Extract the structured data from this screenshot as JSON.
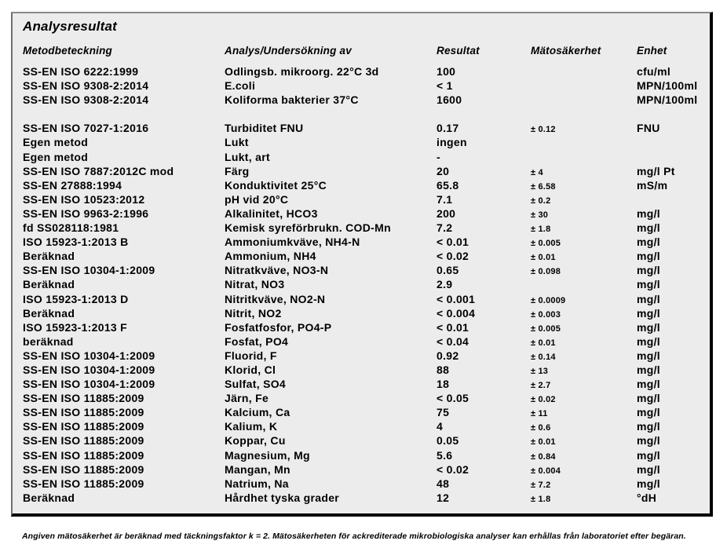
{
  "document": {
    "title": "Analysresultat",
    "footnote": "Angiven mätosäkerhet är beräknad med täckningsfaktor k  =  2. Mätosäkerheten för ackrediterade mikrobiologiska analyser kan erhållas från laboratoriet efter begäran."
  },
  "colors": {
    "panel_background": "#ececec",
    "text": "#000000",
    "panel_shadow": "#000000",
    "panel_border": "#8a8a8a"
  },
  "table": {
    "columns": [
      "Metodbeteckning",
      "Analys/Undersökning av",
      "Resultat",
      "Mätosäkerhet",
      "Enhet"
    ],
    "rows": [
      {
        "method": "SS-EN ISO 6222:1999",
        "analysis": "Odlingsb. mikroorg. 22°C 3d",
        "result": "100",
        "uncertainty": "",
        "unit": "cfu/ml"
      },
      {
        "method": "SS-EN ISO 9308-2:2014",
        "analysis": "E.coli",
        "result": "< 1",
        "uncertainty": "",
        "unit": "MPN/100ml"
      },
      {
        "method": "SS-EN ISO 9308-2:2014",
        "analysis": "Koliforma bakterier 37°C",
        "result": "1600",
        "uncertainty": "",
        "unit": "MPN/100ml",
        "spacer_after": true
      },
      {
        "method": "SS-EN ISO 7027-1:2016",
        "analysis": "Turbiditet FNU",
        "result": "0.17",
        "uncertainty": "± 0.12",
        "unit": "FNU"
      },
      {
        "method": "Egen metod",
        "analysis": "Lukt",
        "result": "ingen",
        "uncertainty": "",
        "unit": ""
      },
      {
        "method": "Egen metod",
        "analysis": "Lukt, art",
        "result": "-",
        "uncertainty": "",
        "unit": ""
      },
      {
        "method": "SS-EN ISO 7887:2012C mod",
        "analysis": "Färg",
        "result": "20",
        "uncertainty": "± 4",
        "unit": "mg/l Pt"
      },
      {
        "method": "SS-EN 27888:1994",
        "analysis": "Konduktivitet 25°C",
        "result": "65.8",
        "uncertainty": "± 6.58",
        "unit": "mS/m"
      },
      {
        "method": "SS-EN ISO 10523:2012",
        "analysis": "pH vid 20°C",
        "result": "7.1",
        "uncertainty": "± 0.2",
        "unit": ""
      },
      {
        "method": "SS-EN ISO 9963-2:1996",
        "analysis": "Alkalinitet, HCO3",
        "result": "200",
        "uncertainty": "± 30",
        "unit": "mg/l"
      },
      {
        "method": "fd SS028118:1981",
        "analysis": "Kemisk syreförbrukn. COD-Mn",
        "result": "7.2",
        "uncertainty": "± 1.8",
        "unit": "mg/l"
      },
      {
        "method": "ISO 15923-1:2013 B",
        "analysis": "Ammoniumkväve, NH4-N",
        "result": "< 0.01",
        "uncertainty": "± 0.005",
        "unit": "mg/l"
      },
      {
        "method": "Beräknad",
        "analysis": "Ammonium, NH4",
        "result": "< 0.02",
        "uncertainty": "± 0.01",
        "unit": "mg/l"
      },
      {
        "method": "SS-EN ISO 10304-1:2009",
        "analysis": "Nitratkväve, NO3-N",
        "result": "0.65",
        "uncertainty": "± 0.098",
        "unit": "mg/l"
      },
      {
        "method": "Beräknad",
        "analysis": "Nitrat, NO3",
        "result": "2.9",
        "uncertainty": "",
        "unit": "mg/l"
      },
      {
        "method": "ISO 15923-1:2013 D",
        "analysis": "Nitritkväve, NO2-N",
        "result": "< 0.001",
        "uncertainty": "± 0.0009",
        "unit": "mg/l"
      },
      {
        "method": "Beräknad",
        "analysis": "Nitrit, NO2",
        "result": "< 0.004",
        "uncertainty": "± 0.003",
        "unit": "mg/l"
      },
      {
        "method": "ISO 15923-1:2013 F",
        "analysis": "Fosfatfosfor, PO4-P",
        "result": "< 0.01",
        "uncertainty": "± 0.005",
        "unit": "mg/l"
      },
      {
        "method": "beräknad",
        "analysis": "Fosfat, PO4",
        "result": "< 0.04",
        "uncertainty": "± 0.01",
        "unit": "mg/l"
      },
      {
        "method": "SS-EN ISO 10304-1:2009",
        "analysis": "Fluorid, F",
        "result": "0.92",
        "uncertainty": "± 0.14",
        "unit": "mg/l"
      },
      {
        "method": "SS-EN ISO 10304-1:2009",
        "analysis": "Klorid, Cl",
        "result": "88",
        "uncertainty": "± 13",
        "unit": "mg/l"
      },
      {
        "method": "SS-EN ISO 10304-1:2009",
        "analysis": "Sulfat, SO4",
        "result": "18",
        "uncertainty": "± 2.7",
        "unit": "mg/l"
      },
      {
        "method": "SS-EN ISO 11885:2009",
        "analysis": "Järn, Fe",
        "result": "< 0.05",
        "uncertainty": "± 0.02",
        "unit": "mg/l"
      },
      {
        "method": "SS-EN ISO 11885:2009",
        "analysis": "Kalcium, Ca",
        "result": "75",
        "uncertainty": "± 11",
        "unit": "mg/l"
      },
      {
        "method": "SS-EN ISO 11885:2009",
        "analysis": "Kalium, K",
        "result": "4",
        "uncertainty": "± 0.6",
        "unit": "mg/l"
      },
      {
        "method": "SS-EN ISO 11885:2009",
        "analysis": "Koppar, Cu",
        "result": "0.05",
        "uncertainty": "± 0.01",
        "unit": "mg/l"
      },
      {
        "method": "SS-EN ISO 11885:2009",
        "analysis": "Magnesium, Mg",
        "result": "5.6",
        "uncertainty": "± 0.84",
        "unit": "mg/l"
      },
      {
        "method": "SS-EN ISO 11885:2009",
        "analysis": "Mangan, Mn",
        "result": "< 0.02",
        "uncertainty": "± 0.004",
        "unit": "mg/l"
      },
      {
        "method": "SS-EN ISO 11885:2009",
        "analysis": "Natrium, Na",
        "result": "48",
        "uncertainty": "± 7.2",
        "unit": "mg/l"
      },
      {
        "method": "Beräknad",
        "analysis": "Hårdhet tyska grader",
        "result": "12",
        "uncertainty": "± 1.8",
        "unit": "°dH"
      }
    ]
  }
}
